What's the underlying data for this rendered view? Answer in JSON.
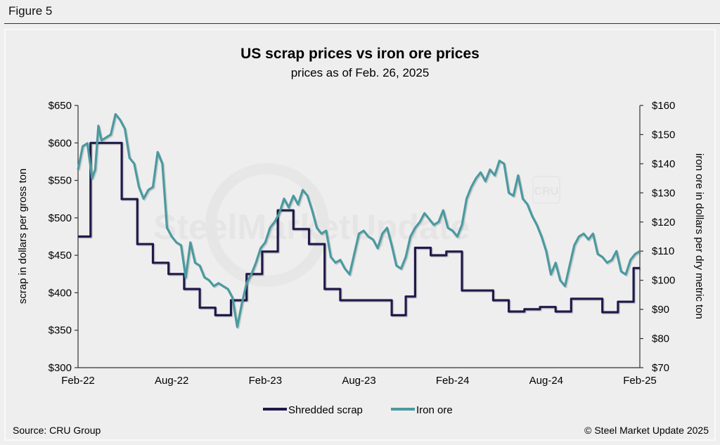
{
  "figure_label": "Figure 5",
  "source": "Source: CRU Group",
  "copyright": "© Steel Market Update 2025",
  "watermark": {
    "text": "SteelMarketUpdate",
    "logo": "CRU"
  },
  "colors": {
    "scrap": "#1f1a4a",
    "iron": "#4a9aa0",
    "axis": "#333333"
  },
  "chart_data": {
    "type": "line",
    "title": "US scrap prices vs iron ore prices",
    "subtitle": "prices as of Feb. 26, 2025",
    "xlabel": "",
    "ylabel_left": "scrap in dollars per gross ton",
    "ylabel_right": "iron ore in dollars per dry metric ton",
    "ylim_left": [
      300,
      650
    ],
    "ylim_right": [
      70,
      160
    ],
    "yticks_left": [
      "$300",
      "$350",
      "$400",
      "$450",
      "$500",
      "$550",
      "$600",
      "$650"
    ],
    "yticks_right": [
      "$70",
      "$80",
      "$90",
      "$100",
      "$110",
      "$120",
      "$130",
      "$140",
      "$150",
      "$160"
    ],
    "xlim_months": [
      0,
      36
    ],
    "xticks": [
      {
        "label": "Feb-22",
        "month": 0
      },
      {
        "label": "Aug-22",
        "month": 6
      },
      {
        "label": "Feb-23",
        "month": 12
      },
      {
        "label": "Aug-23",
        "month": 18
      },
      {
        "label": "Feb-24",
        "month": 24
      },
      {
        "label": "Aug-24",
        "month": 30
      },
      {
        "label": "Feb-25",
        "month": 36
      }
    ],
    "legend": "bottom-center",
    "series": [
      {
        "name": "Shredded scrap",
        "axis": "left",
        "step": true,
        "points": [
          [
            0,
            475
          ],
          [
            0.8,
            475
          ],
          [
            0.8,
            600
          ],
          [
            2.8,
            600
          ],
          [
            2.8,
            525
          ],
          [
            3.8,
            525
          ],
          [
            3.8,
            465
          ],
          [
            4.8,
            465
          ],
          [
            4.8,
            440
          ],
          [
            5.8,
            440
          ],
          [
            5.8,
            425
          ],
          [
            6.8,
            425
          ],
          [
            6.8,
            405
          ],
          [
            7.8,
            405
          ],
          [
            7.8,
            380
          ],
          [
            8.8,
            380
          ],
          [
            8.8,
            370
          ],
          [
            9.8,
            370
          ],
          [
            9.8,
            390
          ],
          [
            10.8,
            390
          ],
          [
            10.8,
            425
          ],
          [
            11.8,
            425
          ],
          [
            11.8,
            455
          ],
          [
            12.8,
            455
          ],
          [
            12.8,
            510
          ],
          [
            13.8,
            510
          ],
          [
            13.8,
            485
          ],
          [
            14.8,
            485
          ],
          [
            14.8,
            465
          ],
          [
            15.8,
            465
          ],
          [
            15.8,
            405
          ],
          [
            16.8,
            405
          ],
          [
            16.8,
            390
          ],
          [
            20.1,
            390
          ],
          [
            20.1,
            370
          ],
          [
            21,
            370
          ],
          [
            21,
            395
          ],
          [
            21.6,
            395
          ],
          [
            21.6,
            460
          ],
          [
            22.6,
            460
          ],
          [
            22.6,
            450
          ],
          [
            23.6,
            450
          ],
          [
            23.6,
            455
          ],
          [
            24.6,
            455
          ],
          [
            24.6,
            403
          ],
          [
            26.6,
            403
          ],
          [
            26.6,
            390
          ],
          [
            27.6,
            390
          ],
          [
            27.6,
            375
          ],
          [
            28.6,
            375
          ],
          [
            28.6,
            378
          ],
          [
            29.6,
            378
          ],
          [
            29.6,
            381
          ],
          [
            30.6,
            381
          ],
          [
            30.6,
            375
          ],
          [
            31.6,
            375
          ],
          [
            31.6,
            392
          ],
          [
            33.6,
            392
          ],
          [
            33.6,
            374
          ],
          [
            34.6,
            374
          ],
          [
            34.6,
            388
          ],
          [
            35.6,
            388
          ],
          [
            35.6,
            433
          ],
          [
            36,
            433
          ]
        ]
      },
      {
        "name": "Iron ore",
        "axis": "right",
        "step": false,
        "points": [
          [
            0,
            138
          ],
          [
            0.3,
            146
          ],
          [
            0.6,
            147
          ],
          [
            0.9,
            135
          ],
          [
            1.1,
            138
          ],
          [
            1.3,
            153
          ],
          [
            1.5,
            148
          ],
          [
            1.8,
            149
          ],
          [
            2.1,
            150
          ],
          [
            2.4,
            157
          ],
          [
            2.7,
            155
          ],
          [
            3.0,
            152
          ],
          [
            3.3,
            142
          ],
          [
            3.6,
            140
          ],
          [
            3.9,
            132
          ],
          [
            4.2,
            128
          ],
          [
            4.5,
            131
          ],
          [
            4.8,
            132
          ],
          [
            5.1,
            144
          ],
          [
            5.4,
            140
          ],
          [
            5.7,
            118
          ],
          [
            6.0,
            115
          ],
          [
            6.3,
            113
          ],
          [
            6.6,
            112
          ],
          [
            6.9,
            101
          ],
          [
            7.2,
            113
          ],
          [
            7.5,
            106
          ],
          [
            7.8,
            105
          ],
          [
            8.1,
            101
          ],
          [
            8.4,
            100
          ],
          [
            8.7,
            98
          ],
          [
            9.0,
            99
          ],
          [
            9.3,
            98
          ],
          [
            9.6,
            97
          ],
          [
            9.9,
            94
          ],
          [
            10.2,
            84
          ],
          [
            10.5,
            92
          ],
          [
            10.8,
            99
          ],
          [
            11.1,
            102
          ],
          [
            11.4,
            106
          ],
          [
            11.7,
            111
          ],
          [
            12.0,
            113
          ],
          [
            12.3,
            118
          ],
          [
            12.6,
            120
          ],
          [
            12.9,
            123
          ],
          [
            13.2,
            128
          ],
          [
            13.5,
            125
          ],
          [
            13.8,
            129
          ],
          [
            14.1,
            126
          ],
          [
            14.4,
            131
          ],
          [
            14.7,
            129
          ],
          [
            15.0,
            124
          ],
          [
            15.3,
            118
          ],
          [
            15.6,
            116
          ],
          [
            15.9,
            117
          ],
          [
            16.2,
            108
          ],
          [
            16.5,
            106
          ],
          [
            16.8,
            107
          ],
          [
            17.1,
            104
          ],
          [
            17.4,
            102
          ],
          [
            17.7,
            109
          ],
          [
            18.0,
            116
          ],
          [
            18.3,
            117
          ],
          [
            18.6,
            115
          ],
          [
            18.9,
            114
          ],
          [
            19.2,
            111
          ],
          [
            19.5,
            116
          ],
          [
            19.8,
            118
          ],
          [
            20.1,
            112
          ],
          [
            20.4,
            105
          ],
          [
            20.7,
            104
          ],
          [
            21.0,
            108
          ],
          [
            21.3,
            115
          ],
          [
            21.6,
            118
          ],
          [
            21.9,
            120
          ],
          [
            22.2,
            123
          ],
          [
            22.5,
            121
          ],
          [
            22.8,
            119
          ],
          [
            23.1,
            120
          ],
          [
            23.4,
            124
          ],
          [
            23.7,
            118
          ],
          [
            24.0,
            117
          ],
          [
            24.3,
            115
          ],
          [
            24.6,
            119
          ],
          [
            24.9,
            128
          ],
          [
            25.2,
            132
          ],
          [
            25.5,
            135
          ],
          [
            25.8,
            137
          ],
          [
            26.1,
            134
          ],
          [
            26.4,
            138
          ],
          [
            26.7,
            136
          ],
          [
            27.0,
            141
          ],
          [
            27.3,
            140
          ],
          [
            27.6,
            130
          ],
          [
            27.9,
            129
          ],
          [
            28.2,
            136
          ],
          [
            28.5,
            128
          ],
          [
            28.8,
            126
          ],
          [
            29.1,
            122
          ],
          [
            29.4,
            119
          ],
          [
            29.7,
            115
          ],
          [
            30.0,
            110
          ],
          [
            30.3,
            102
          ],
          [
            30.6,
            106
          ],
          [
            30.9,
            100
          ],
          [
            31.2,
            98
          ],
          [
            31.5,
            105
          ],
          [
            31.8,
            112
          ],
          [
            32.1,
            115
          ],
          [
            32.4,
            116
          ],
          [
            32.7,
            114
          ],
          [
            33.0,
            116
          ],
          [
            33.3,
            109
          ],
          [
            33.6,
            108
          ],
          [
            33.9,
            106
          ],
          [
            34.2,
            107
          ],
          [
            34.5,
            110
          ],
          [
            34.8,
            103
          ],
          [
            35.1,
            102
          ],
          [
            35.4,
            107
          ],
          [
            35.7,
            109
          ],
          [
            36,
            110
          ]
        ]
      }
    ]
  }
}
